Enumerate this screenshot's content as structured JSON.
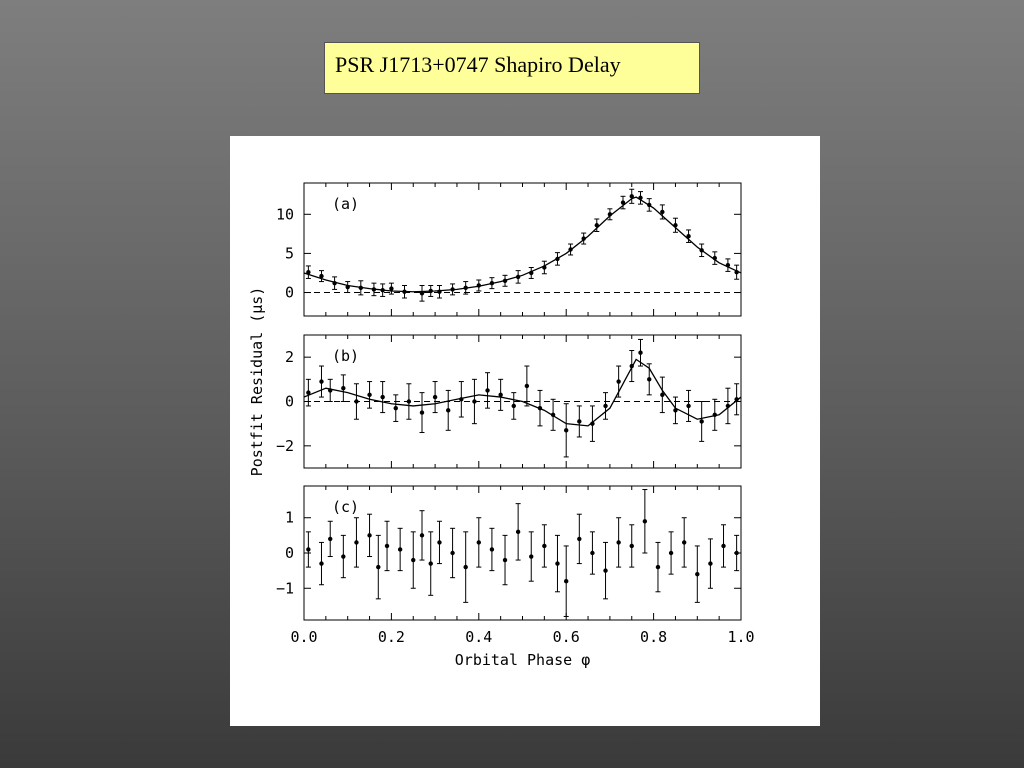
{
  "slide": {
    "title": "PSR J1713+0747 Shapiro Delay"
  },
  "chart_data": {
    "type": "scatter",
    "xlabel": "Orbital Phase φ",
    "ylabel": "Postfit Residual (μs)",
    "xlim": [
      0.0,
      1.0
    ],
    "xticks": [
      "0.0",
      "0.2",
      "0.4",
      "0.6",
      "0.8",
      "1.0"
    ],
    "panels": [
      {
        "label": "(a)",
        "ylim": [
          -3,
          14
        ],
        "yticks": [
          "0",
          "5",
          "10"
        ],
        "ytick_values": [
          0,
          5,
          10
        ],
        "zero_line": true,
        "curve": {
          "x": [
            0.0,
            0.05,
            0.1,
            0.15,
            0.2,
            0.25,
            0.3,
            0.35,
            0.4,
            0.45,
            0.5,
            0.55,
            0.6,
            0.65,
            0.7,
            0.75,
            0.76,
            0.8,
            0.85,
            0.9,
            0.95,
            1.0
          ],
          "y": [
            2.5,
            1.6,
            0.9,
            0.5,
            0.2,
            0.1,
            0.2,
            0.4,
            0.8,
            1.4,
            2.2,
            3.4,
            5.0,
            7.2,
            9.8,
            12.0,
            12.2,
            10.8,
            8.3,
            5.8,
            3.8,
            2.5
          ]
        },
        "points": {
          "x": [
            0.01,
            0.04,
            0.07,
            0.1,
            0.13,
            0.16,
            0.18,
            0.2,
            0.23,
            0.27,
            0.29,
            0.31,
            0.34,
            0.37,
            0.4,
            0.43,
            0.46,
            0.49,
            0.52,
            0.55,
            0.58,
            0.61,
            0.64,
            0.67,
            0.7,
            0.73,
            0.75,
            0.77,
            0.79,
            0.82,
            0.85,
            0.88,
            0.91,
            0.94,
            0.97,
            0.99
          ],
          "y": [
            2.6,
            2.1,
            1.2,
            0.7,
            0.6,
            0.4,
            0.3,
            0.5,
            0.1,
            -0.1,
            0.2,
            0.1,
            0.4,
            0.6,
            0.9,
            1.2,
            1.5,
            2.0,
            2.5,
            3.2,
            4.3,
            5.5,
            6.9,
            8.6,
            10.0,
            11.5,
            12.3,
            12.1,
            11.2,
            10.3,
            8.6,
            7.2,
            5.4,
            4.4,
            3.5,
            2.6
          ],
          "err": [
            0.8,
            0.7,
            0.8,
            0.7,
            0.9,
            0.8,
            0.8,
            0.7,
            0.8,
            1.0,
            0.7,
            0.8,
            0.7,
            0.8,
            0.7,
            0.7,
            0.7,
            0.8,
            0.7,
            0.8,
            0.8,
            0.7,
            0.7,
            0.8,
            0.7,
            0.8,
            0.9,
            0.8,
            0.8,
            0.9,
            0.9,
            0.8,
            0.8,
            0.8,
            0.8,
            0.9
          ]
        }
      },
      {
        "label": "(b)",
        "ylim": [
          -3,
          3
        ],
        "yticks": [
          "−2",
          "0",
          "2"
        ],
        "ytick_values": [
          -2,
          0,
          2
        ],
        "zero_line": true,
        "curve": {
          "x": [
            0.0,
            0.05,
            0.1,
            0.15,
            0.2,
            0.25,
            0.3,
            0.35,
            0.4,
            0.45,
            0.5,
            0.55,
            0.6,
            0.65,
            0.7,
            0.73,
            0.76,
            0.79,
            0.82,
            0.85,
            0.9,
            0.95,
            1.0
          ],
          "y": [
            0.2,
            0.6,
            0.4,
            0.1,
            -0.1,
            -0.2,
            -0.1,
            0.1,
            0.3,
            0.2,
            0.0,
            -0.4,
            -1.0,
            -1.1,
            -0.3,
            0.8,
            1.9,
            1.5,
            0.5,
            -0.3,
            -0.8,
            -0.6,
            0.2
          ]
        },
        "points": {
          "x": [
            0.01,
            0.04,
            0.06,
            0.09,
            0.12,
            0.15,
            0.18,
            0.21,
            0.24,
            0.27,
            0.3,
            0.33,
            0.36,
            0.39,
            0.42,
            0.45,
            0.48,
            0.51,
            0.54,
            0.57,
            0.6,
            0.63,
            0.66,
            0.69,
            0.72,
            0.75,
            0.77,
            0.79,
            0.82,
            0.85,
            0.88,
            0.91,
            0.94,
            0.97,
            0.99
          ],
          "y": [
            0.4,
            0.9,
            0.5,
            0.6,
            0.0,
            0.3,
            0.2,
            -0.3,
            0.0,
            -0.5,
            0.2,
            -0.4,
            0.1,
            0.0,
            0.5,
            0.3,
            -0.2,
            0.7,
            -0.3,
            -0.6,
            -1.3,
            -0.9,
            -1.0,
            -0.2,
            0.9,
            1.6,
            2.2,
            1.0,
            0.3,
            -0.4,
            -0.2,
            -0.9,
            -0.6,
            -0.2,
            0.1
          ],
          "err": [
            0.6,
            0.7,
            0.5,
            0.6,
            0.8,
            0.6,
            0.7,
            0.6,
            0.8,
            0.9,
            0.7,
            0.9,
            0.8,
            1.0,
            0.8,
            0.7,
            0.6,
            0.9,
            0.8,
            0.7,
            1.2,
            0.7,
            0.8,
            0.6,
            0.7,
            0.7,
            0.6,
            0.7,
            0.8,
            0.6,
            0.7,
            0.9,
            0.7,
            0.8,
            0.7
          ]
        }
      },
      {
        "label": "(c)",
        "ylim": [
          -1.9,
          1.9
        ],
        "yticks": [
          "1",
          "0",
          "−1"
        ],
        "ytick_values": [
          1,
          0,
          -1
        ],
        "zero_line": false,
        "curve": null,
        "points": {
          "x": [
            0.01,
            0.04,
            0.06,
            0.09,
            0.12,
            0.15,
            0.17,
            0.19,
            0.22,
            0.25,
            0.27,
            0.29,
            0.31,
            0.34,
            0.37,
            0.4,
            0.43,
            0.46,
            0.49,
            0.52,
            0.55,
            0.58,
            0.6,
            0.63,
            0.66,
            0.69,
            0.72,
            0.75,
            0.78,
            0.81,
            0.84,
            0.87,
            0.9,
            0.93,
            0.96,
            0.99
          ],
          "y": [
            0.1,
            -0.3,
            0.4,
            -0.1,
            0.3,
            0.5,
            -0.4,
            0.2,
            0.1,
            -0.2,
            0.5,
            -0.3,
            0.3,
            0.0,
            -0.4,
            0.3,
            0.1,
            -0.2,
            0.6,
            -0.1,
            0.2,
            -0.3,
            -0.8,
            0.4,
            0.0,
            -0.5,
            0.3,
            0.2,
            0.9,
            -0.4,
            0.0,
            0.3,
            -0.6,
            -0.3,
            0.2,
            0.0
          ],
          "err": [
            0.5,
            0.6,
            0.5,
            0.6,
            0.7,
            0.6,
            0.9,
            0.7,
            0.6,
            0.8,
            0.7,
            0.9,
            0.6,
            0.7,
            1.0,
            0.7,
            0.6,
            0.7,
            0.8,
            0.7,
            0.6,
            0.8,
            1.0,
            0.7,
            0.6,
            0.8,
            0.7,
            0.6,
            0.9,
            0.7,
            0.6,
            0.7,
            0.8,
            0.7,
            0.6,
            0.5
          ]
        }
      }
    ]
  }
}
